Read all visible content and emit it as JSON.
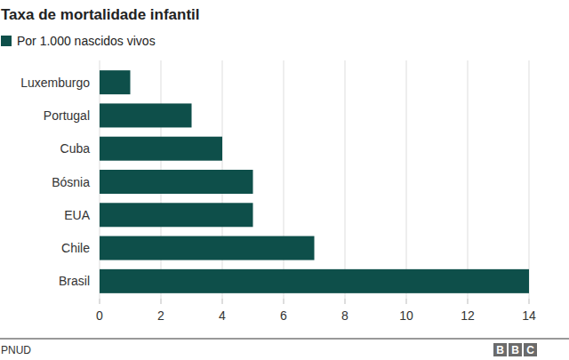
{
  "chart_data": {
    "type": "bar",
    "title": "Taxa de mortalidade infantil",
    "orientation": "horizontal",
    "categories": [
      "Luxemburgo",
      "Portugal",
      "Cuba",
      "Bósnia",
      "EUA",
      "Chile",
      "Brasil"
    ],
    "series": [
      {
        "name": "Por 1.000 nascidos vivos",
        "color": "#0e4f4a",
        "values": [
          1,
          3,
          4,
          5,
          5,
          7,
          14
        ]
      }
    ],
    "xlim": [
      0,
      14
    ],
    "xticks": [
      0,
      2,
      4,
      6,
      8,
      10,
      12,
      14
    ],
    "grid": true,
    "source": "PNUD",
    "logo": "BBC"
  }
}
